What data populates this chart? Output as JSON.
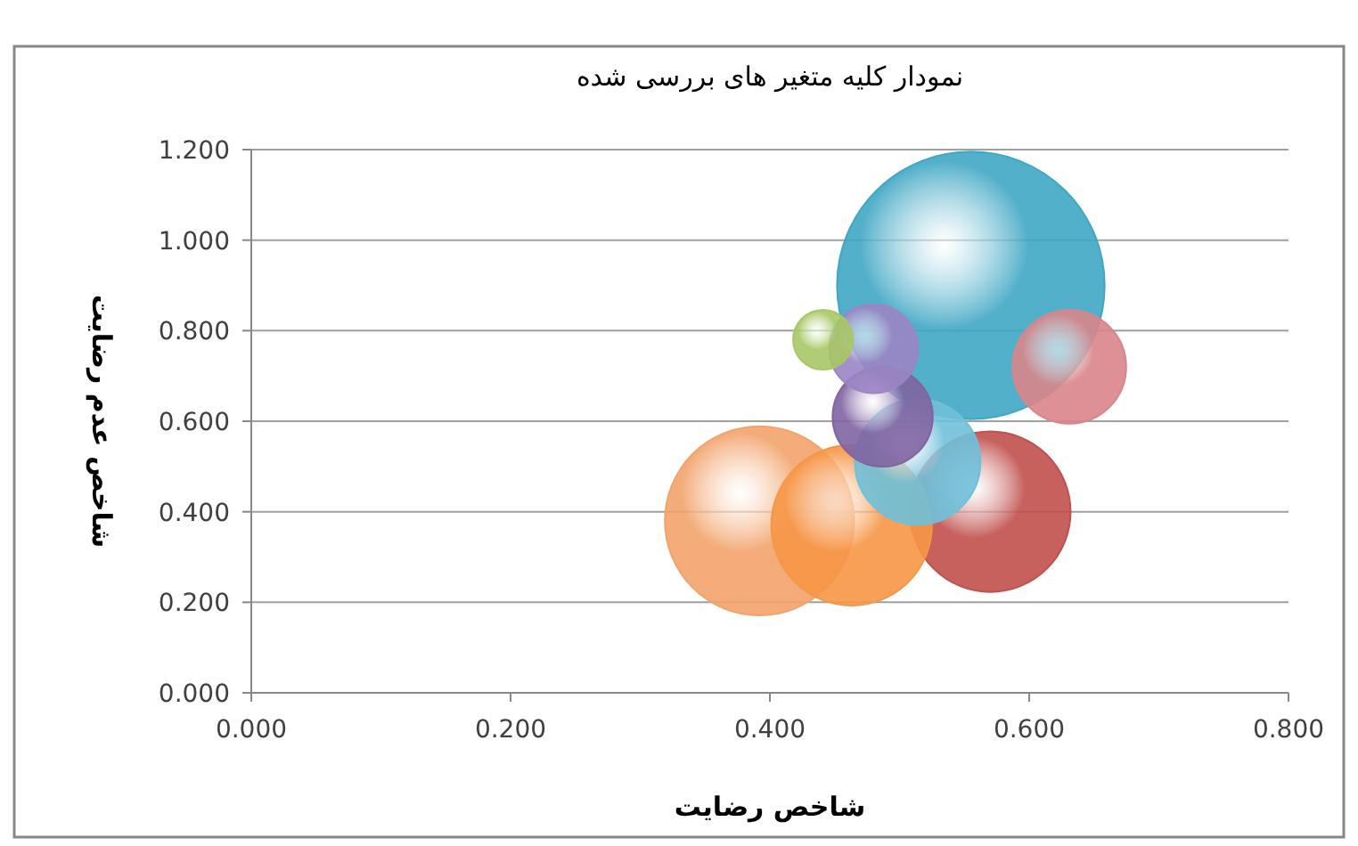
{
  "chart_data": {
    "type": "bubble",
    "title": "نمودار کلیه متغیر های بررسی شده",
    "xlabel": "شاخص رضایت",
    "ylabel": "شاخص عدم رضایت",
    "x": [
      0.555,
      0.392,
      0.57,
      0.463,
      0.631,
      0.514,
      0.487,
      0.48,
      0.441
    ],
    "values": [
      0.9,
      0.38,
      0.4,
      0.37,
      0.72,
      0.51,
      0.61,
      0.76,
      0.78
    ],
    "sizes": [
      1,
      0.5,
      0.36,
      0.36,
      0.18,
      0.22,
      0.14,
      0.11,
      0.05
    ],
    "colors": [
      "#3fa7c4",
      "#f2a36b",
      "#c0504d",
      "#f79646",
      "#d9858a",
      "#6fc0d9",
      "#8064a2",
      "#9b85c4",
      "#a8c765"
    ],
    "xlim": [
      0,
      0.8
    ],
    "xticks": [
      {
        "value": 0,
        "label": "0.000"
      },
      {
        "value": 0.2,
        "label": "0.200"
      },
      {
        "value": 0.4,
        "label": "0.400"
      },
      {
        "value": 0.6,
        "label": "0.600"
      },
      {
        "value": 0.8,
        "label": "0.800"
      }
    ],
    "ylim": [
      0,
      1.2
    ],
    "yticks": [
      {
        "value": 0,
        "label": "0.000"
      },
      {
        "value": 0.2,
        "label": "0.200"
      },
      {
        "value": 0.4,
        "label": "0.400"
      },
      {
        "value": 0.6,
        "label": "0.600"
      },
      {
        "value": 0.8,
        "label": "0.800"
      },
      {
        "value": 1,
        "label": "1.000"
      },
      {
        "value": 1.2,
        "label": "1.200"
      }
    ],
    "grid": "y"
  }
}
